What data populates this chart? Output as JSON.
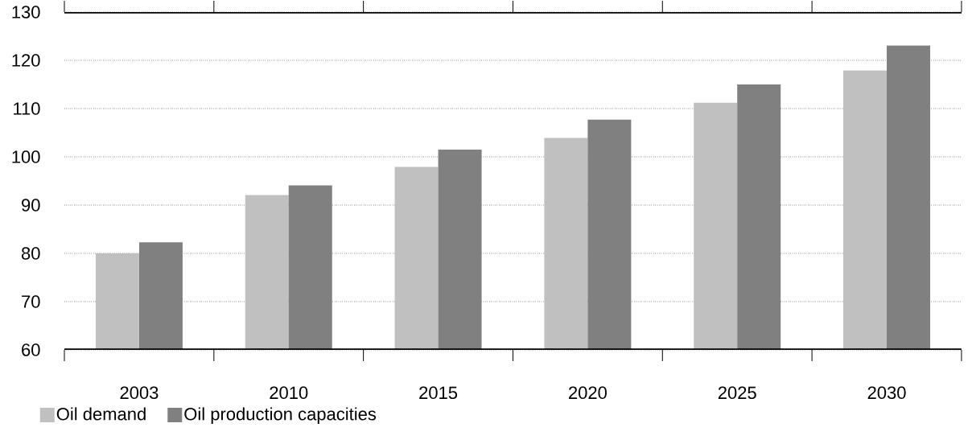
{
  "chart_data": {
    "type": "bar",
    "categories": [
      "2003",
      "2010",
      "2015",
      "2020",
      "2025",
      "2030"
    ],
    "series": [
      {
        "name": "Oil demand",
        "color": "#c0c0c0",
        "values": [
          80,
          92.1,
          97.9,
          103.9,
          111.2,
          117.9
        ]
      },
      {
        "name": "Oil production capacities",
        "color": "#808080",
        "values": [
          82.3,
          94.1,
          101.5,
          107.7,
          115,
          123.1
        ]
      }
    ],
    "ylim": [
      60,
      130
    ],
    "yticks": [
      60,
      70,
      80,
      90,
      100,
      110,
      120,
      130
    ],
    "grid": "y",
    "legend": "bottom left"
  }
}
